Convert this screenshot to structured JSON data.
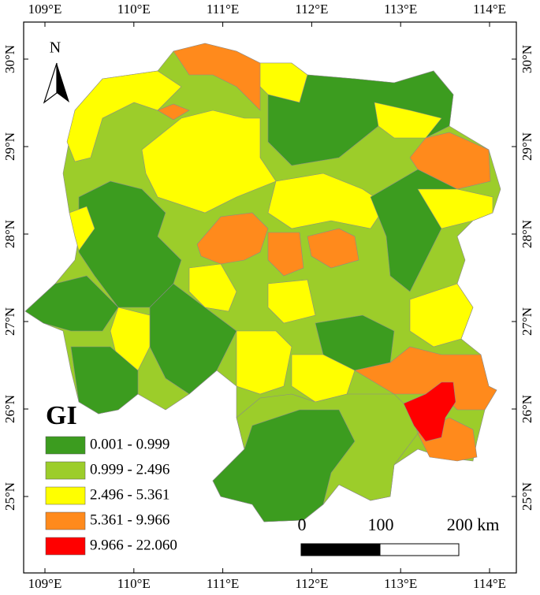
{
  "map": {
    "north_label": "N",
    "lon_ticks": [
      {
        "value": 109,
        "label": "109°E"
      },
      {
        "value": 110,
        "label": "110°E"
      },
      {
        "value": 111,
        "label": "111°E"
      },
      {
        "value": 112,
        "label": "112°E"
      },
      {
        "value": 113,
        "label": "113°E"
      },
      {
        "value": 114,
        "label": "114°E"
      }
    ],
    "lat_ticks": [
      {
        "value": 30,
        "label": "30°N"
      },
      {
        "value": 29,
        "label": "29°N"
      },
      {
        "value": 28,
        "label": "28°N"
      },
      {
        "value": 27,
        "label": "27°N"
      },
      {
        "value": 26,
        "label": "26°N"
      },
      {
        "value": 25,
        "label": "25°N"
      }
    ],
    "legend": {
      "title": "GI",
      "classes": [
        {
          "label": "0.001 - 0.999",
          "color": "#3c9c1f"
        },
        {
          "label": "0.999 - 2.496",
          "color": "#9ccd2a"
        },
        {
          "label": "2.496 - 5.361",
          "color": "#ffff00"
        },
        {
          "label": "5.361 - 9.966",
          "color": "#ff8a1c"
        },
        {
          "label": "9.966 - 22.060",
          "color": "#ff0000"
        }
      ]
    },
    "scale_bar": {
      "labels": [
        "0",
        "100",
        "200 km"
      ]
    }
  }
}
